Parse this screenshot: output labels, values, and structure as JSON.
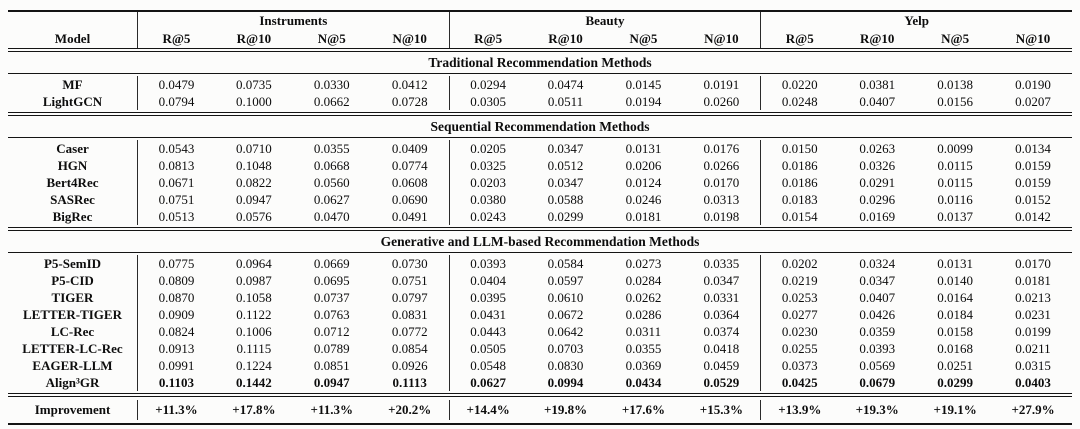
{
  "table": {
    "header": {
      "model_label": "Model",
      "groups": [
        {
          "label": "Instruments",
          "metrics": [
            "R@5",
            "R@10",
            "N@5",
            "N@10"
          ]
        },
        {
          "label": "Beauty",
          "metrics": [
            "R@5",
            "R@10",
            "N@5",
            "N@10"
          ]
        },
        {
          "label": "Yelp",
          "metrics": [
            "R@5",
            "R@10",
            "N@5",
            "N@10"
          ]
        }
      ]
    },
    "sections": [
      {
        "title": "Traditional Recommendation Methods",
        "rows": [
          {
            "model": "MF",
            "values": [
              "0.0479",
              "0.0735",
              "0.0330",
              "0.0412",
              "0.0294",
              "0.0474",
              "0.0145",
              "0.0191",
              "0.0220",
              "0.0381",
              "0.0138",
              "0.0190"
            ]
          },
          {
            "model": "LightGCN",
            "values": [
              "0.0794",
              "0.1000",
              "0.0662",
              "0.0728",
              "0.0305",
              "0.0511",
              "0.0194",
              "0.0260",
              "0.0248",
              "0.0407",
              "0.0156",
              "0.0207"
            ]
          }
        ]
      },
      {
        "title": "Sequential Recommendation Methods",
        "rows": [
          {
            "model": "Caser",
            "values": [
              "0.0543",
              "0.0710",
              "0.0355",
              "0.0409",
              "0.0205",
              "0.0347",
              "0.0131",
              "0.0176",
              "0.0150",
              "0.0263",
              "0.0099",
              "0.0134"
            ]
          },
          {
            "model": "HGN",
            "values": [
              "0.0813",
              "0.1048",
              "0.0668",
              "0.0774",
              "0.0325",
              "0.0512",
              "0.0206",
              "0.0266",
              "0.0186",
              "0.0326",
              "0.0115",
              "0.0159"
            ]
          },
          {
            "model": "Bert4Rec",
            "values": [
              "0.0671",
              "0.0822",
              "0.0560",
              "0.0608",
              "0.0203",
              "0.0347",
              "0.0124",
              "0.0170",
              "0.0186",
              "0.0291",
              "0.0115",
              "0.0159"
            ]
          },
          {
            "model": "SASRec",
            "values": [
              "0.0751",
              "0.0947",
              "0.0627",
              "0.0690",
              "0.0380",
              "0.0588",
              "0.0246",
              "0.0313",
              "0.0183",
              "0.0296",
              "0.0116",
              "0.0152"
            ]
          },
          {
            "model": "BigRec",
            "values": [
              "0.0513",
              "0.0576",
              "0.0470",
              "0.0491",
              "0.0243",
              "0.0299",
              "0.0181",
              "0.0198",
              "0.0154",
              "0.0169",
              "0.0137",
              "0.0142"
            ]
          }
        ]
      },
      {
        "title": "Generative and LLM-based Recommendation Methods",
        "rows": [
          {
            "model": "P5-SemID",
            "values": [
              "0.0775",
              "0.0964",
              "0.0669",
              "0.0730",
              "0.0393",
              "0.0584",
              "0.0273",
              "0.0335",
              "0.0202",
              "0.0324",
              "0.0131",
              "0.0170"
            ]
          },
          {
            "model": "P5-CID",
            "values": [
              "0.0809",
              "0.0987",
              "0.0695",
              "0.0751",
              "0.0404",
              "0.0597",
              "0.0284",
              "0.0347",
              "0.0219",
              "0.0347",
              "0.0140",
              "0.0181"
            ]
          },
          {
            "model": "TIGER",
            "values": [
              "0.0870",
              "0.1058",
              "0.0737",
              "0.0797",
              "0.0395",
              "0.0610",
              "0.0262",
              "0.0331",
              "0.0253",
              "0.0407",
              "0.0164",
              "0.0213"
            ]
          },
          {
            "model": "LETTER-TIGER",
            "values": [
              "0.0909",
              "0.1122",
              "0.0763",
              "0.0831",
              "0.0431",
              "0.0672",
              "0.0286",
              "0.0364",
              "0.0277",
              "0.0426",
              "0.0184",
              "0.0231"
            ]
          },
          {
            "model": "LC-Rec",
            "values": [
              "0.0824",
              "0.1006",
              "0.0712",
              "0.0772",
              "0.0443",
              "0.0642",
              "0.0311",
              "0.0374",
              "0.0230",
              "0.0359",
              "0.0158",
              "0.0199"
            ]
          },
          {
            "model": "LETTER-LC-Rec",
            "values": [
              "0.0913",
              "0.1115",
              "0.0789",
              "0.0854",
              "0.0505",
              "0.0703",
              "0.0355",
              "0.0418",
              "0.0255",
              "0.0393",
              "0.0168",
              "0.0211"
            ]
          },
          {
            "model": "EAGER-LLM",
            "values": [
              "0.0991",
              "0.1224",
              "0.0851",
              "0.0926",
              "0.0548",
              "0.0830",
              "0.0369",
              "0.0459",
              "0.0373",
              "0.0569",
              "0.0251",
              "0.0315"
            ]
          },
          {
            "model": "Align³GR",
            "bold": true,
            "values": [
              "0.1103",
              "0.1442",
              "0.0947",
              "0.1113",
              "0.0627",
              "0.0994",
              "0.0434",
              "0.0529",
              "0.0425",
              "0.0679",
              "0.0299",
              "0.0403"
            ]
          }
        ]
      }
    ],
    "improvement_rows": [
      {
        "model": "Improvement",
        "bold": true,
        "values": [
          "+11.3%",
          "+17.8%",
          "+11.3%",
          "+20.2%",
          "+14.4%",
          "+19.8%",
          "+17.6%",
          "+15.3%",
          "+13.9%",
          "+19.3%",
          "+19.1%",
          "+27.9%"
        ]
      }
    ],
    "colors": {
      "text": "#0d0d0d",
      "rule": "#141414",
      "background": "#fcfcfb"
    }
  }
}
